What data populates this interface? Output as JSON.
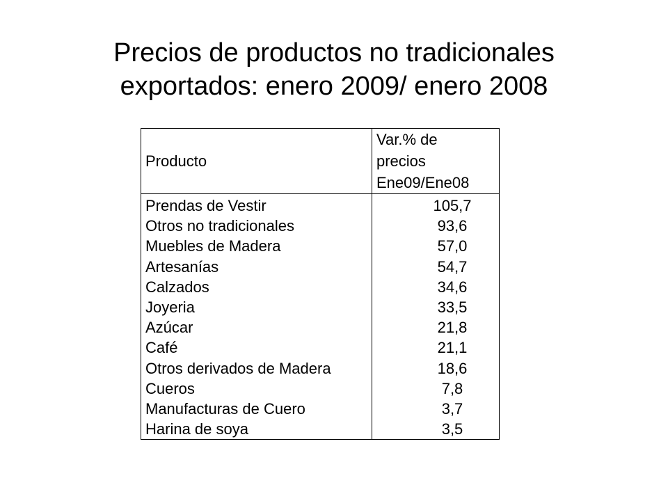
{
  "title": {
    "line1": "Precios de productos no tradicionales",
    "line2": "exportados: enero 2009/ enero 2008"
  },
  "table": {
    "headers": {
      "product": "Producto",
      "variation_line1": "Var.% de",
      "variation_line2": "precios",
      "variation_line3": "Ene09/Ene08"
    },
    "rows": [
      {
        "product": "Prendas de Vestir",
        "value": "105,7"
      },
      {
        "product": "Otros no tradicionales",
        "value": "93,6"
      },
      {
        "product": "Muebles de Madera",
        "value": "57,0"
      },
      {
        "product": "Artesanías",
        "value": "54,7"
      },
      {
        "product": "Calzados",
        "value": "34,6"
      },
      {
        "product": "Joyeria",
        "value": "33,5"
      },
      {
        "product": "Azúcar",
        "value": "21,8"
      },
      {
        "product": "Café",
        "value": "21,1"
      },
      {
        "product": "Otros derivados de Madera",
        "value": "18,6"
      },
      {
        "product": "Cueros",
        "value": "7,8"
      },
      {
        "product": "Manufacturas de Cuero",
        "value": "3,7"
      },
      {
        "product": "Harina de soya",
        "value": "3,5"
      }
    ]
  }
}
